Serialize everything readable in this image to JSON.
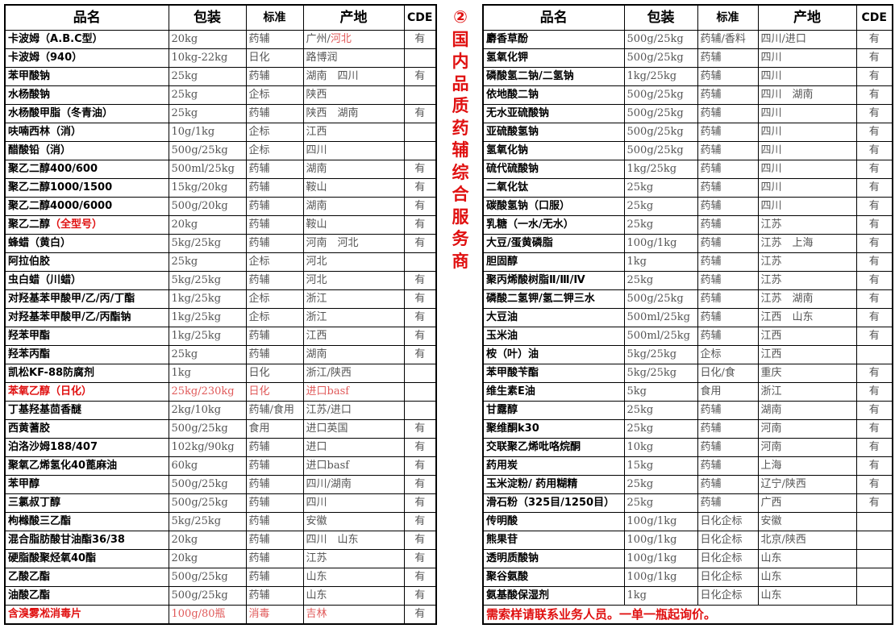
{
  "headers": {
    "name": "品名",
    "pkg": "包装",
    "std": "标准",
    "origin": "产地",
    "cde": "CDE"
  },
  "banner": {
    "number": "②",
    "text": "国内品质药辅综合服务商"
  },
  "colors": {
    "accent_red": "#e01010"
  },
  "left_rows": [
    {
      "name": "卡波姆（A.B.C型）",
      "pkg": "20kg",
      "std": "药辅",
      "origin": "广州/",
      "origin_red": "河北",
      "cde": "有"
    },
    {
      "name": "卡波姆（940）",
      "pkg": "10kg-22kg",
      "std": "日化",
      "origin": "路博润",
      "cde": ""
    },
    {
      "name": "苯甲酸钠",
      "pkg": "25kg",
      "std": "药辅",
      "origin": "湖南　四川",
      "cde": "有"
    },
    {
      "name": "水杨酸钠",
      "pkg": "25kg",
      "std": "企标",
      "origin": "陕西",
      "cde": ""
    },
    {
      "name": "水杨酸甲脂（冬青油）",
      "pkg": "25kg",
      "std": "药辅",
      "origin": "陕西　湖南",
      "cde": "有"
    },
    {
      "name": "呋喃西林（消）",
      "pkg": "10g/1kg",
      "std": "企标",
      "origin": "江西",
      "cde": ""
    },
    {
      "name": "醋酸铅（消）",
      "pkg": "500g/25kg",
      "std": "企标",
      "origin": "四川",
      "cde": ""
    },
    {
      "name": "聚乙二醇400/600",
      "pkg": "500ml/25kg",
      "std": "药辅",
      "origin": "湖南",
      "cde": "有"
    },
    {
      "name": "聚乙二醇1000/1500",
      "pkg": "15kg/20kg",
      "std": "药辅",
      "origin": "鞍山",
      "cde": "有"
    },
    {
      "name": "聚乙二醇4000/6000",
      "pkg": "500g/20kg",
      "std": "药辅",
      "origin": "湖南",
      "cde": "有"
    },
    {
      "name": "聚乙二醇",
      "name_red": "（全型号）",
      "pkg": "20kg",
      "std": "药辅",
      "origin": "鞍山",
      "cde": "有"
    },
    {
      "name": "蜂蜡（黄白）",
      "pkg": "5kg/25kg",
      "std": "药辅",
      "origin": "河南　河北",
      "cde": "有"
    },
    {
      "name": "阿拉伯胶",
      "pkg": "25kg",
      "std": "企标",
      "origin": "河北",
      "cde": ""
    },
    {
      "name": "虫白蜡（川蜡）",
      "pkg": "5kg/25kg",
      "std": "药辅",
      "origin": "河北",
      "cde": "有"
    },
    {
      "name": "对羟基苯甲酸甲/乙/丙/丁酯",
      "pkg": "1kg/25kg",
      "std": "企标",
      "origin": "浙江",
      "cde": "有"
    },
    {
      "name": "对羟基苯甲酸甲/乙/丙酯钠",
      "pkg": "1kg/25kg",
      "std": "企标",
      "origin": "浙江",
      "cde": "有"
    },
    {
      "name": "羟苯甲酯",
      "pkg": "1kg/25kg",
      "std": "药辅",
      "origin": "江西",
      "cde": "有"
    },
    {
      "name": "羟苯丙酯",
      "pkg": "25kg",
      "std": "药辅",
      "origin": "湖南",
      "cde": "有"
    },
    {
      "name": "凯松KF-88防腐剂",
      "pkg": "1kg",
      "std": "日化",
      "origin": "浙江/陕西",
      "cde": ""
    },
    {
      "name": "苯氧乙醇（日化）",
      "pkg": "25kg/230kg",
      "std": "日化",
      "origin": "进口basf",
      "cde": "",
      "red": true
    },
    {
      "name": "丁基羟基茴香醚",
      "pkg": "2kg/10kg",
      "std": "药辅/食用",
      "origin": "江苏/进口",
      "cde": ""
    },
    {
      "name": "西黄蓍胶",
      "pkg": "500g/25kg",
      "std": "食用",
      "origin": "进口英国",
      "cde": "有"
    },
    {
      "name": "泊洛沙姆188/407",
      "pkg": "102kg/90kg",
      "std": "药辅",
      "origin": "进口",
      "cde": "有"
    },
    {
      "name": "聚氧乙烯氢化40蓖麻油",
      "pkg": "60kg",
      "std": "药辅",
      "origin": "进口basf",
      "cde": "有"
    },
    {
      "name": "苯甲醇",
      "pkg": "500g/25kg",
      "std": "药辅",
      "origin": "四川/湖南",
      "cde": "有"
    },
    {
      "name": "三氯叔丁醇",
      "pkg": "500g/25kg",
      "std": "药辅",
      "origin": "四川",
      "cde": "有"
    },
    {
      "name": "枸橼酸三乙酯",
      "pkg": "5kg/25kg",
      "std": "药辅",
      "origin": "安徽",
      "cde": "有"
    },
    {
      "name": "混合脂肪酸甘油酯36/38",
      "pkg": "20kg",
      "std": "药辅",
      "origin": "四川　山东",
      "cde": "有"
    },
    {
      "name": "硬脂酸聚烃氧40酯",
      "pkg": "20kg",
      "std": "药辅",
      "origin": "江苏",
      "cde": "有"
    },
    {
      "name": "乙酸乙酯",
      "pkg": "500g/25kg",
      "std": "药辅",
      "origin": "山东",
      "cde": "有"
    },
    {
      "name": "油酸乙酯",
      "pkg": "500g/25kg",
      "std": "药辅",
      "origin": "山东",
      "cde": "有"
    },
    {
      "name": "含溴雾凇消毒片",
      "pkg": "100g/80瓶",
      "std": "消毒",
      "origin": "吉林",
      "cde": "有",
      "red": true
    }
  ],
  "right_rows": [
    {
      "name": "麝香草酚",
      "pkg": "500g/25kg",
      "std": "药辅/香料",
      "origin": "四川/进口",
      "cde": "有"
    },
    {
      "name": "氢氧化钾",
      "pkg": "500g/25kg",
      "std": "药辅",
      "origin": "四川",
      "cde": "有"
    },
    {
      "name": "磷酸氢二钠/二氢钠",
      "pkg": "1kg/25kg",
      "std": "药辅",
      "origin": "四川",
      "cde": "有"
    },
    {
      "name": "依地酸二钠",
      "pkg": "500g/25kg",
      "std": "药辅",
      "origin": "四川　湖南",
      "cde": "有"
    },
    {
      "name": "无水亚硫酸钠",
      "pkg": "500g/25kg",
      "std": "药辅",
      "origin": "四川",
      "cde": "有"
    },
    {
      "name": "亚硫酸氢钠",
      "pkg": "500g/25kg",
      "std": "药辅",
      "origin": "四川",
      "cde": "有"
    },
    {
      "name": "氢氧化钠",
      "pkg": "500g/25kg",
      "std": "药辅",
      "origin": "四川",
      "cde": "有"
    },
    {
      "name": "硫代硫酸钠",
      "pkg": "1kg/25kg",
      "std": "药辅",
      "origin": "四川",
      "cde": "有"
    },
    {
      "name": "二氧化钛",
      "pkg": "25kg",
      "std": "药辅",
      "origin": "四川",
      "cde": "有"
    },
    {
      "name": "碳酸氢钠（口服）",
      "pkg": "25kg",
      "std": "药辅",
      "origin": "四川",
      "cde": "有"
    },
    {
      "name": "乳糖（一水/无水）",
      "pkg": "25kg",
      "std": "药辅",
      "origin": "江苏",
      "cde": "有"
    },
    {
      "name": "大豆/蛋黄磷脂",
      "pkg": "100g/1kg",
      "std": "药辅",
      "origin": "江苏　上海",
      "cde": "有"
    },
    {
      "name": "胆固醇",
      "pkg": "1kg",
      "std": "药辅",
      "origin": "江苏",
      "cde": "有"
    },
    {
      "name": "聚丙烯酸树脂Ⅱ/Ⅲ/Ⅳ",
      "pkg": "25kg",
      "std": "药辅",
      "origin": "江苏",
      "cde": "有"
    },
    {
      "name": "磷酸二氢钾/氢二钾三水",
      "pkg": "500g/25kg",
      "std": "药辅",
      "origin": "江苏　湖南",
      "cde": "有"
    },
    {
      "name": "大豆油",
      "pkg": "500ml/25kg",
      "std": "药辅",
      "origin": "江西　山东",
      "cde": "有"
    },
    {
      "name": "玉米油",
      "pkg": "500ml/25kg",
      "std": "药辅",
      "origin": "江西",
      "cde": "有"
    },
    {
      "name": "桉（叶）油",
      "pkg": "5kg/25kg",
      "std": "企标",
      "origin": "江西",
      "cde": ""
    },
    {
      "name": "苯甲酸苄酯",
      "pkg": "5kg/25kg",
      "std": "日化/食",
      "origin": "重庆",
      "cde": "有"
    },
    {
      "name": "维生素E油",
      "pkg": "5kg",
      "std": "食用",
      "origin": "浙江",
      "cde": "有"
    },
    {
      "name": "甘露醇",
      "pkg": "25kg",
      "std": "药辅",
      "origin": "湖南",
      "cde": "有"
    },
    {
      "name": "聚维酮k30",
      "pkg": "25kg",
      "std": "药辅",
      "origin": "河南",
      "cde": "有"
    },
    {
      "name": "交联聚乙烯吡咯烷酮",
      "pkg": "10kg",
      "std": "药辅",
      "origin": "河南",
      "cde": "有"
    },
    {
      "name": "药用炭",
      "pkg": "15kg",
      "std": "药辅",
      "origin": "上海",
      "cde": "有"
    },
    {
      "name": "玉米淀粉/ 药用糊精",
      "pkg": "25kg",
      "std": "药辅",
      "origin": "辽宁/陕西",
      "cde": "有"
    },
    {
      "name": "滑石粉（325目/1250目）",
      "pkg": "25kg",
      "std": "药辅",
      "origin": "广西",
      "cde": "有"
    },
    {
      "name": "传明酸",
      "pkg": "100g/1kg",
      "std": "日化企标",
      "origin": "安徽",
      "cde": ""
    },
    {
      "name": "熊果苷",
      "pkg": "100g/1kg",
      "std": "日化企标",
      "origin": "北京/陕西",
      "cde": ""
    },
    {
      "name": "透明质酸钠",
      "pkg": "100g/1kg",
      "std": "日化企标",
      "origin": "山东",
      "cde": ""
    },
    {
      "name": "聚谷氨酸",
      "pkg": "100g/1kg",
      "std": "日化企标",
      "origin": "山东",
      "cde": ""
    },
    {
      "name": "氨基酸保湿剂",
      "pkg": "1kg",
      "std": "日化企标",
      "origin": "山东",
      "cde": ""
    }
  ],
  "footer": "需索样请联系业务人员。一单一瓶起询价。"
}
